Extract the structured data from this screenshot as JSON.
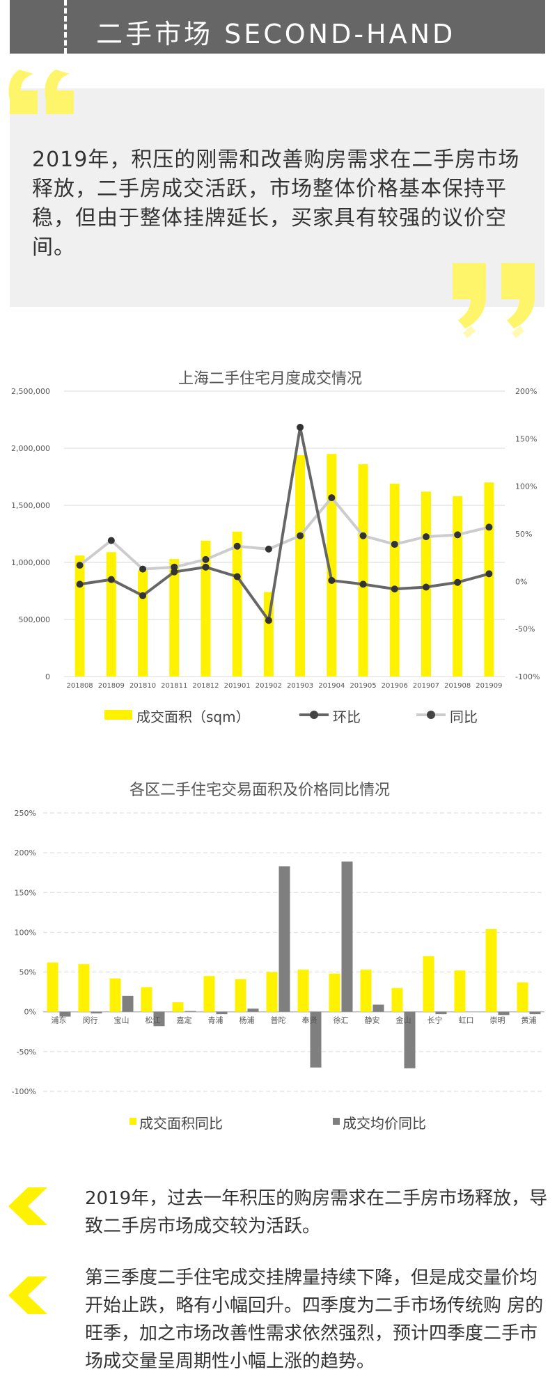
{
  "header": {
    "title": "二手市场  SECOND-HAND"
  },
  "quote": {
    "text": "2019年，积压的刚需和改善购房需求在二手房市场释放，二手房成交活跃，市场整体价格基本保持平稳，但由于整体挂牌延长，买家具有较强的议价空间。",
    "open_icon": "open-quote-icon",
    "close_icon": "close-quote-icon"
  },
  "colors": {
    "accent_yellow": "#FFF200",
    "quote_yellow": "#FFF56A",
    "dark_gray": "#666666",
    "light_gray": "#CCCCCC",
    "gray_bar": "#7F7F7F"
  },
  "chart_data": [
    {
      "type": "bar",
      "title": "上海二手住宅月度成交情况",
      "categories": [
        "201808",
        "201809",
        "201810",
        "201811",
        "201812",
        "201901",
        "201902",
        "201903",
        "201904",
        "201905",
        "201906",
        "201907",
        "201908",
        "201909"
      ],
      "series": [
        {
          "name": "成交面积（sqm）",
          "type": "bar",
          "axis": "left",
          "values": [
            1060000,
            1090000,
            930000,
            1030000,
            1190000,
            1270000,
            740000,
            1940000,
            1950000,
            1860000,
            1690000,
            1620000,
            1580000,
            1700000
          ]
        },
        {
          "name": "环比",
          "type": "line",
          "axis": "right",
          "values": [
            -3,
            2,
            -15,
            10,
            15,
            5,
            -41,
            162,
            1,
            -3,
            -8,
            -6,
            -1,
            8
          ]
        },
        {
          "name": "同比",
          "type": "line",
          "axis": "right",
          "values": [
            17,
            43,
            13,
            15,
            23,
            37,
            34,
            48,
            88,
            48,
            39,
            47,
            49,
            57
          ]
        }
      ],
      "ylim_left": [
        0,
        2500000
      ],
      "yticks_left": [
        "0",
        "500,000",
        "1,000,000",
        "1,500,000",
        "2,000,000",
        "2,500,000"
      ],
      "ylim_right": [
        -100,
        200
      ],
      "yticks_right": [
        "-100%",
        "-50%",
        "0%",
        "50%",
        "100%",
        "150%",
        "200%"
      ],
      "legend_position": "bottom",
      "grid": true
    },
    {
      "type": "bar",
      "title": "各区二手住宅交易面积及价格同比情况",
      "categories": [
        "浦东",
        "闵行",
        "宝山",
        "松江",
        "嘉定",
        "青浦",
        "杨浦",
        "普陀",
        "奉贤",
        "徐汇",
        "静安",
        "金山",
        "长宁",
        "虹口",
        "崇明",
        "黄浦"
      ],
      "series": [
        {
          "name": "成交面积同比",
          "values": [
            62,
            60,
            42,
            31,
            12,
            45,
            41,
            50,
            53,
            48,
            53,
            30,
            70,
            52,
            104,
            37
          ]
        },
        {
          "name": "成交均价同比",
          "values": [
            -6,
            -2,
            20,
            -18,
            1,
            -3,
            4,
            183,
            -70,
            189,
            9,
            -71,
            -3,
            0,
            -4,
            -3
          ]
        }
      ],
      "ylim": [
        -100,
        250
      ],
      "yticks": [
        "-100%",
        "-50%",
        "0%",
        "50%",
        "100%",
        "150%",
        "200%",
        "250%"
      ],
      "legend_position": "bottom",
      "grid": true
    }
  ],
  "bullets": [
    {
      "icon": "left-chevron-icon",
      "text": "2019年，过去一年积压的购房需求在二手房市场释放，导致二手房市场成交较为活跃。"
    },
    {
      "icon": "left-chevron-icon",
      "text": "第三季度二手住宅成交挂牌量持续下降，但是成交量价均开始止跌，略有小幅回升。四季度为二手市场传统购 房的旺季，加之市场改善性需求依然强烈，预计四季度二手市场成交量呈周期性小幅上涨的趋势。"
    }
  ]
}
